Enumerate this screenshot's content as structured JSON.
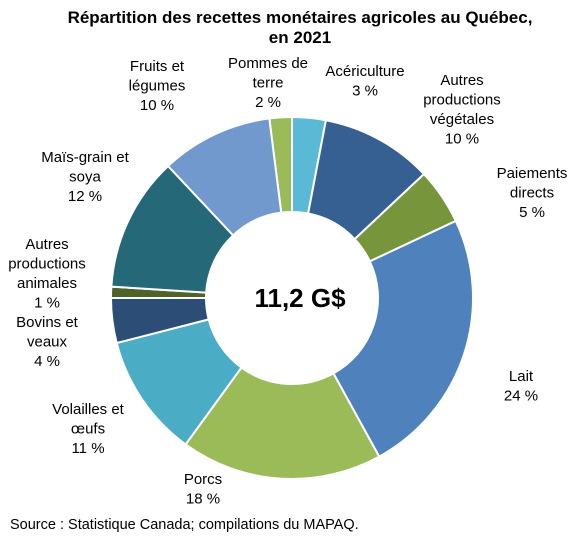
{
  "chart_data": {
    "type": "pie",
    "title_line1": "Répartition des recettes monétaires agricoles au Québec,",
    "title_line2": "en 2021",
    "center_label": "11,2 G$",
    "source": "Source : Statistique Canada; compilations du MAPAQ.",
    "unit": "%",
    "slices": [
      {
        "label_lines": [
          "Pommes de",
          "terre",
          "2 %"
        ],
        "value": 2,
        "color": "#9BBB59"
      },
      {
        "label_lines": [
          "Acériculture",
          "3 %"
        ],
        "value": 3,
        "color": "#5ABAD6"
      },
      {
        "label_lines": [
          "Autres",
          "productions",
          "végétales",
          "10 %"
        ],
        "value": 10,
        "color": "#376092"
      },
      {
        "label_lines": [
          "Paiements",
          "directs",
          "5 %"
        ],
        "value": 5,
        "color": "#77963B"
      },
      {
        "label_lines": [
          "Lait",
          "24 %"
        ],
        "value": 24,
        "color": "#4F81BD"
      },
      {
        "label_lines": [
          "Porcs",
          "18 %"
        ],
        "value": 18,
        "color": "#9BBB59"
      },
      {
        "label_lines": [
          "Volailles et",
          "œufs",
          "11 %"
        ],
        "value": 11,
        "color": "#4BACC6"
      },
      {
        "label_lines": [
          "Bovins et",
          "veaux",
          "4 %"
        ],
        "value": 4,
        "color": "#2C4D75"
      },
      {
        "label_lines": [
          "Autres",
          "productions",
          "animales",
          "1 %"
        ],
        "value": 1,
        "color": "#4F6228"
      },
      {
        "label_lines": [
          "Maïs-grain et",
          "soya",
          "12 %"
        ],
        "value": 12,
        "color": "#256979"
      },
      {
        "label_lines": [
          "Fruits et",
          "légumes",
          "10 %"
        ],
        "value": 10,
        "color": "#7299CE"
      }
    ]
  }
}
